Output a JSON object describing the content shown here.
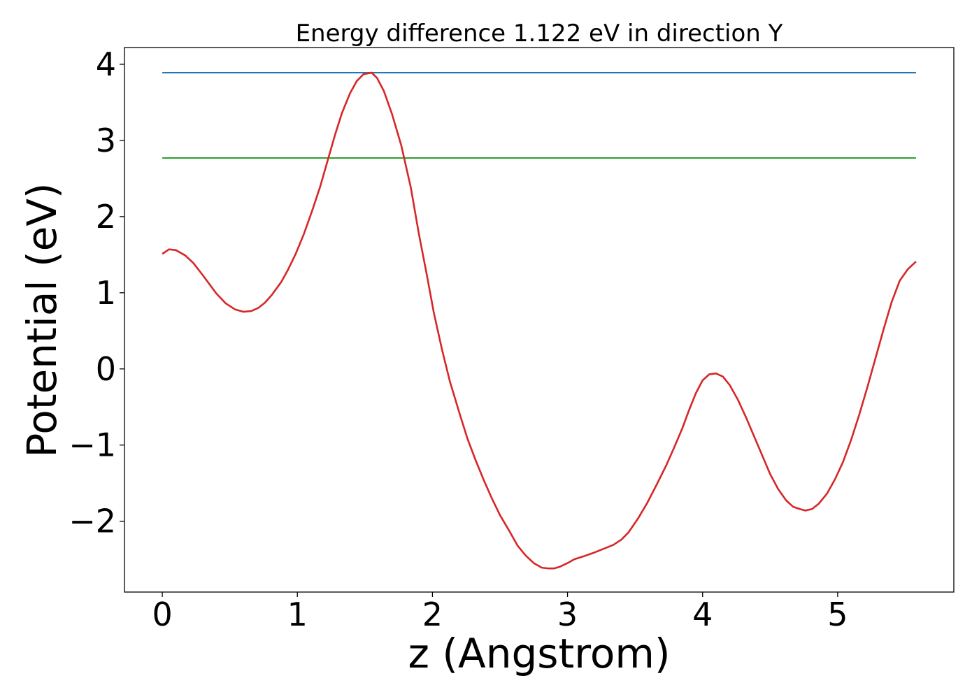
{
  "chart_data": {
    "type": "line",
    "title": "Energy difference 1.122 eV in direction Y",
    "xlabel": "z (Angstrom)",
    "ylabel": "Potential (eV)",
    "xlim": [
      -0.28,
      5.86
    ],
    "ylim": [
      -2.93,
      4.22
    ],
    "xticks": [
      0,
      1,
      2,
      3,
      4,
      5
    ],
    "yticks": [
      -2,
      -1,
      0,
      1,
      2,
      3,
      4
    ],
    "xtick_labels": [
      "0",
      "1",
      "2",
      "3",
      "4",
      "5"
    ],
    "ytick_labels": [
      "−2",
      "−1",
      "0",
      "1",
      "2",
      "3",
      "4"
    ],
    "grid": false,
    "series": [
      {
        "color": "#1f77b4",
        "x": [
          0,
          5.58
        ],
        "y": [
          3.89,
          3.89
        ]
      },
      {
        "color": "#2ca02c",
        "x": [
          0,
          5.58
        ],
        "y": [
          2.77,
          2.77
        ]
      },
      {
        "color": "#d62728",
        "x": [
          0,
          0.05,
          0.1,
          0.17,
          0.23,
          0.3,
          0.4,
          0.47,
          0.54,
          0.6,
          0.66,
          0.71,
          0.76,
          0.81,
          0.88,
          0.93,
          0.99,
          1.05,
          1.11,
          1.17,
          1.22,
          1.28,
          1.33,
          1.39,
          1.44,
          1.49,
          1.52,
          1.55,
          1.59,
          1.64,
          1.7,
          1.77,
          1.84,
          1.9,
          1.96,
          2.01,
          2.07,
          2.13,
          2.2,
          2.26,
          2.32,
          2.38,
          2.44,
          2.5,
          2.57,
          2.63,
          2.69,
          2.75,
          2.81,
          2.86,
          2.9,
          2.94,
          3.0,
          3.05,
          3.12,
          3.2,
          3.27,
          3.34,
          3.4,
          3.45,
          3.52,
          3.59,
          3.66,
          3.73,
          3.79,
          3.85,
          3.9,
          3.95,
          4.0,
          4.05,
          4.1,
          4.15,
          4.2,
          4.26,
          4.32,
          4.38,
          4.44,
          4.5,
          4.56,
          4.62,
          4.67,
          4.72,
          4.76,
          4.81,
          4.86,
          4.92,
          4.98,
          5.04,
          5.1,
          5.16,
          5.22,
          5.28,
          5.34,
          5.4,
          5.46,
          5.52,
          5.58
        ],
        "y": [
          1.51,
          1.57,
          1.56,
          1.49,
          1.39,
          1.23,
          0.99,
          0.86,
          0.78,
          0.75,
          0.76,
          0.8,
          0.87,
          0.97,
          1.14,
          1.3,
          1.52,
          1.78,
          2.08,
          2.4,
          2.71,
          3.08,
          3.36,
          3.62,
          3.78,
          3.87,
          3.88,
          3.89,
          3.82,
          3.65,
          3.35,
          2.93,
          2.38,
          1.77,
          1.22,
          0.74,
          0.26,
          -0.17,
          -0.58,
          -0.92,
          -1.2,
          -1.46,
          -1.7,
          -1.92,
          -2.13,
          -2.32,
          -2.45,
          -2.55,
          -2.61,
          -2.62,
          -2.62,
          -2.6,
          -2.55,
          -2.5,
          -2.46,
          -2.41,
          -2.36,
          -2.31,
          -2.24,
          -2.15,
          -1.97,
          -1.76,
          -1.52,
          -1.27,
          -1.03,
          -0.78,
          -0.54,
          -0.32,
          -0.15,
          -0.07,
          -0.06,
          -0.1,
          -0.21,
          -0.4,
          -0.63,
          -0.88,
          -1.13,
          -1.38,
          -1.58,
          -1.73,
          -1.81,
          -1.84,
          -1.86,
          -1.84,
          -1.77,
          -1.64,
          -1.45,
          -1.22,
          -0.93,
          -0.6,
          -0.24,
          0.14,
          0.52,
          0.88,
          1.16,
          1.31,
          1.41
        ]
      }
    ]
  }
}
